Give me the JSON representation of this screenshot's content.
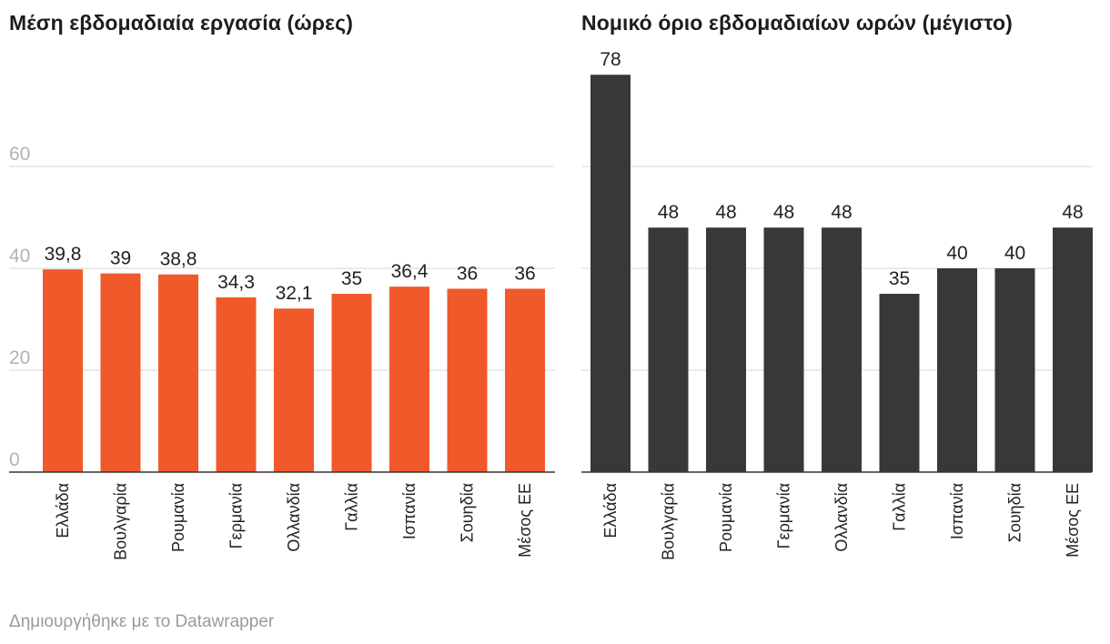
{
  "chart_data": [
    {
      "type": "bar",
      "title": "Μέση εβδομαδιαία εργασία (ώρες)",
      "categories": [
        "Ελλάδα",
        "Βουλγαρία",
        "Ρουμανία",
        "Γερμανία",
        "Ολλανδία",
        "Γαλλία",
        "Ισπανία",
        "Σουηδία",
        "Μέσος ΕΕ"
      ],
      "values": [
        39.8,
        39,
        38.8,
        34.3,
        32.1,
        35,
        36.4,
        36,
        36
      ],
      "value_labels": [
        "39,8",
        "39",
        "38,8",
        "34,3",
        "32,1",
        "35",
        "36,4",
        "36",
        "36"
      ],
      "yticks": [
        0,
        20,
        40,
        60
      ],
      "ytick_labels": [
        "0",
        "20",
        "40",
        "60"
      ],
      "ylim": [
        0,
        80
      ],
      "color": "#f0592a",
      "grid": true
    },
    {
      "type": "bar",
      "title": "Νομικό όριο εβδομαδιαίων ωρών (μέγιστο)",
      "categories": [
        "Ελλάδα",
        "Βουλγαρία",
        "Ρουμανία",
        "Γερμανία",
        "Ολλανδία",
        "Γαλλία",
        "Ισπανία",
        "Σουηδία",
        "Μέσος ΕΕ"
      ],
      "values": [
        78,
        48,
        48,
        48,
        48,
        35,
        40,
        40,
        48
      ],
      "value_labels": [
        "78",
        "48",
        "48",
        "48",
        "48",
        "35",
        "40",
        "40",
        "48"
      ],
      "yticks": [
        0,
        20,
        40,
        60
      ],
      "ytick_labels": [
        "",
        "",
        "",
        ""
      ],
      "ylim": [
        0,
        80
      ],
      "color": "#383838",
      "grid": true
    }
  ],
  "footer": "Δημιουργήθηκε με το Datawrapper"
}
